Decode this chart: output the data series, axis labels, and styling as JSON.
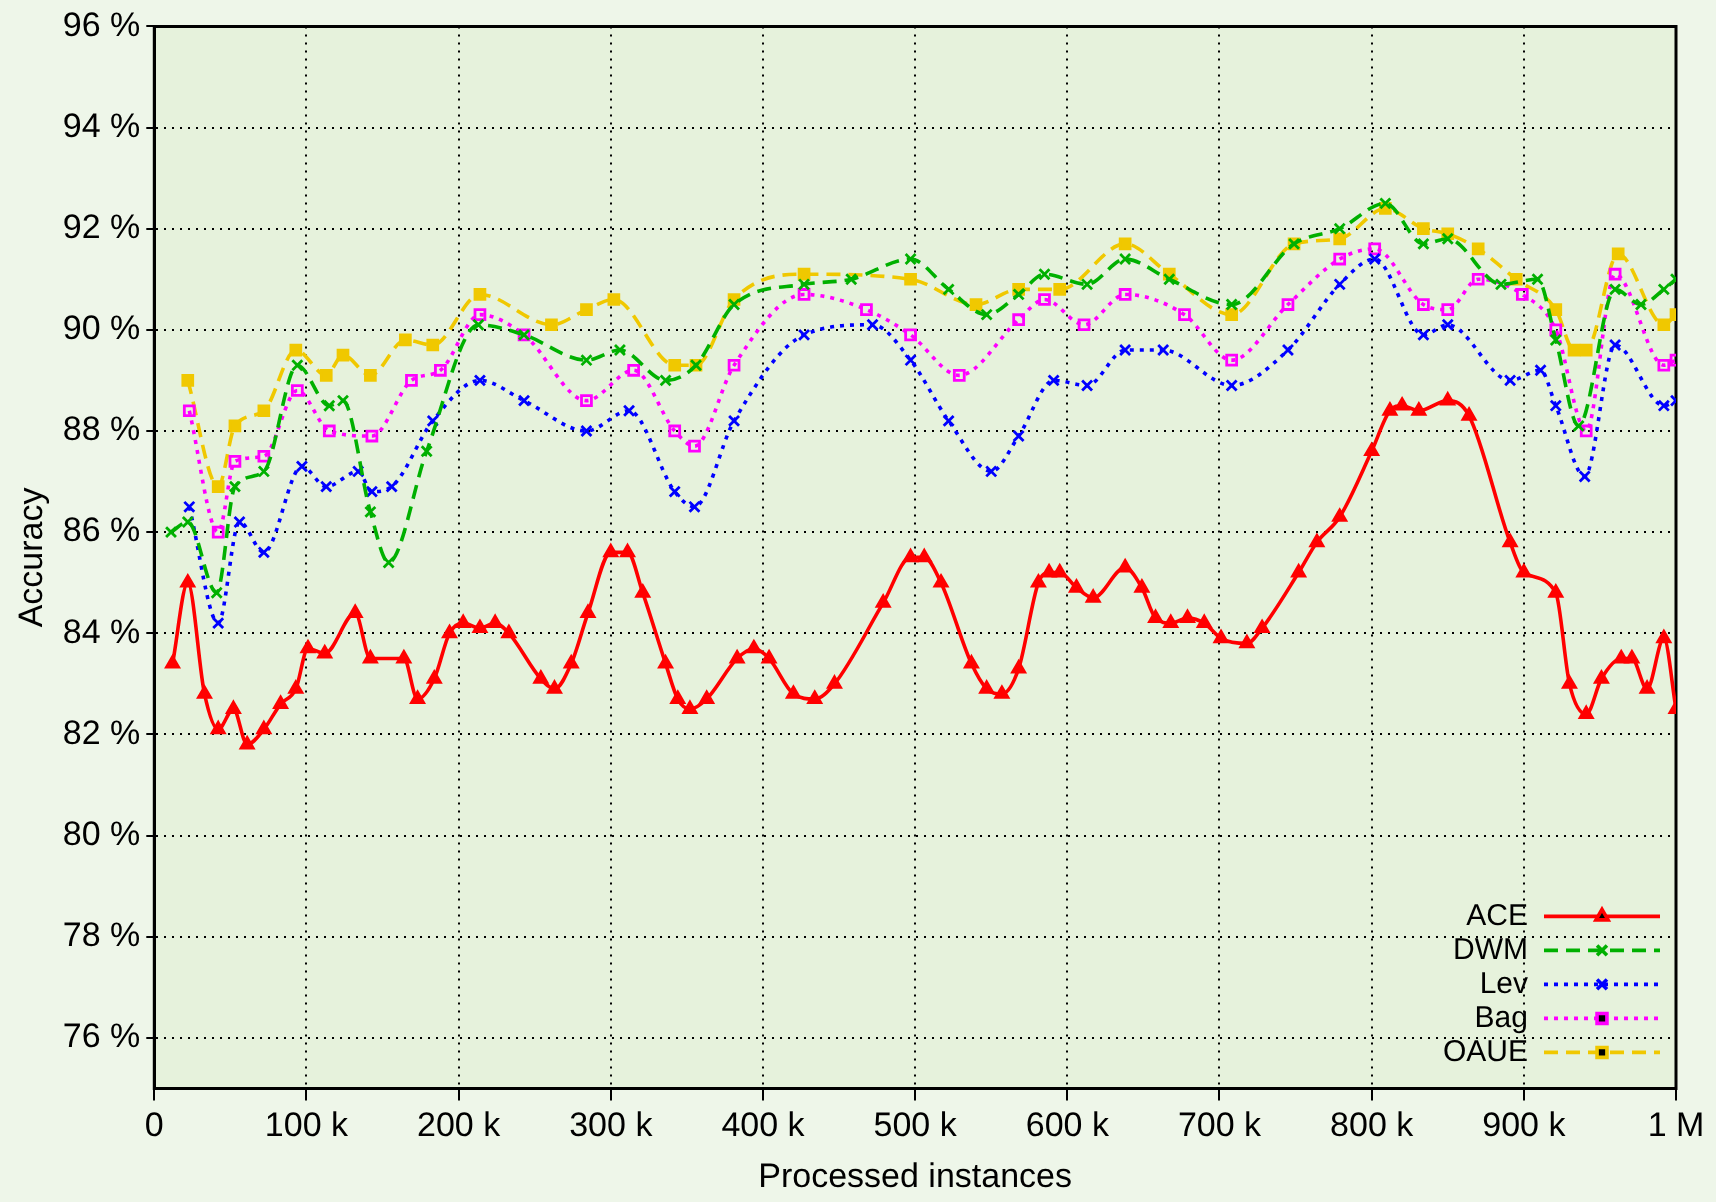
{
  "chart_data": {
    "type": "line",
    "xlabel": "Processed instances",
    "ylabel": "Accuracy",
    "xlim": [
      0,
      1000000
    ],
    "ylim": [
      75,
      96
    ],
    "xticks": [
      {
        "value": 0,
        "label": "0"
      },
      {
        "value": 100000,
        "label": "100 k"
      },
      {
        "value": 200000,
        "label": "200 k"
      },
      {
        "value": 300000,
        "label": "300 k"
      },
      {
        "value": 400000,
        "label": "400 k"
      },
      {
        "value": 500000,
        "label": "500 k"
      },
      {
        "value": 600000,
        "label": "600 k"
      },
      {
        "value": 700000,
        "label": "700 k"
      },
      {
        "value": 800000,
        "label": "800 k"
      },
      {
        "value": 900000,
        "label": "900 k"
      },
      {
        "value": 1000000,
        "label": "1 M"
      }
    ],
    "yticks": [
      {
        "value": 76,
        "label": "76 %"
      },
      {
        "value": 78,
        "label": "78 %"
      },
      {
        "value": 80,
        "label": "80 %"
      },
      {
        "value": 82,
        "label": "82 %"
      },
      {
        "value": 84,
        "label": "84 %"
      },
      {
        "value": 86,
        "label": "86 %"
      },
      {
        "value": 88,
        "label": "88 %"
      },
      {
        "value": 90,
        "label": "90 %"
      },
      {
        "value": 92,
        "label": "92 %"
      },
      {
        "value": 94,
        "label": "94 %"
      },
      {
        "value": 96,
        "label": "96 %"
      }
    ],
    "grid": true,
    "legend": "bottom right",
    "series": [
      {
        "name": "ACE",
        "color": "#ff0000",
        "marker": "triangle",
        "line_style": "solid",
        "x": [
          12000,
          22000,
          33000,
          42000,
          52000,
          61000,
          72000,
          83000,
          93000,
          101000,
          112000,
          132000,
          142000,
          164000,
          173000,
          184000,
          194000,
          203000,
          214000,
          224000,
          233000,
          254000,
          263000,
          274000,
          285000,
          300000,
          311000,
          321000,
          336000,
          344000,
          352000,
          363000,
          383000,
          394000,
          404000,
          420000,
          434000,
          447000,
          479000,
          497000,
          506000,
          517000,
          537000,
          547000,
          557000,
          568000,
          581000,
          588000,
          595000,
          606000,
          617000,
          638000,
          649000,
          658000,
          668000,
          679000,
          690000,
          701000,
          718000,
          728000,
          752000,
          764000,
          779000,
          800000,
          812000,
          820000,
          831000,
          850000,
          864000,
          891000,
          900000,
          921000,
          930000,
          941000,
          951000,
          964000,
          971000,
          981000,
          992000,
          1000000
        ],
        "values": [
          83.4,
          85.0,
          82.8,
          82.1,
          82.5,
          81.8,
          82.1,
          82.6,
          82.9,
          83.7,
          83.6,
          84.4,
          83.5,
          83.5,
          82.7,
          83.1,
          84.0,
          84.2,
          84.1,
          84.2,
          84.0,
          83.1,
          82.9,
          83.4,
          84.4,
          85.6,
          85.6,
          84.8,
          83.4,
          82.7,
          82.5,
          82.7,
          83.5,
          83.7,
          83.5,
          82.8,
          82.7,
          83.0,
          84.6,
          85.5,
          85.5,
          85.0,
          83.4,
          82.9,
          82.8,
          83.3,
          85.0,
          85.2,
          85.2,
          84.9,
          84.7,
          85.3,
          84.9,
          84.3,
          84.2,
          84.3,
          84.2,
          83.9,
          83.8,
          84.1,
          85.2,
          85.8,
          86.3,
          87.6,
          88.4,
          88.5,
          88.4,
          88.6,
          88.3,
          85.8,
          85.2,
          84.8,
          83.0,
          82.4,
          83.1,
          83.5,
          83.5,
          82.9,
          83.9,
          82.5
        ]
      },
      {
        "name": "DWM",
        "color": "#00b000",
        "marker": "cross",
        "line_style": "dashed",
        "x": [
          11000,
          22000,
          41000,
          53000,
          72000,
          94000,
          115000,
          124000,
          142000,
          154000,
          179000,
          213000,
          243000,
          284000,
          306000,
          336000,
          356000,
          381000,
          427000,
          458000,
          497000,
          522000,
          547000,
          568000,
          585000,
          613000,
          638000,
          667000,
          708000,
          749000,
          779000,
          809000,
          834000,
          850000,
          885000,
          909000,
          921000,
          936000,
          960000,
          977000,
          992000,
          1000000
        ],
        "values": [
          86.0,
          86.2,
          84.8,
          86.9,
          87.2,
          89.3,
          88.5,
          88.6,
          86.4,
          85.4,
          87.6,
          90.1,
          89.9,
          89.4,
          89.6,
          89.0,
          89.3,
          90.5,
          90.9,
          91.0,
          91.4,
          90.8,
          90.3,
          90.7,
          91.1,
          90.9,
          91.4,
          91.0,
          90.5,
          91.7,
          92.0,
          92.5,
          91.7,
          91.8,
          90.9,
          91.0,
          89.8,
          88.1,
          90.8,
          90.5,
          90.8,
          91.0
        ]
      },
      {
        "name": "Lev",
        "color": "#0000ff",
        "marker": "cross",
        "line_style": "dotted",
        "x": [
          23000,
          42000,
          56000,
          72000,
          97000,
          113000,
          134000,
          143000,
          156000,
          183000,
          214000,
          243000,
          284000,
          312000,
          342000,
          355000,
          381000,
          427000,
          472000,
          497000,
          522000,
          550000,
          568000,
          591000,
          613000,
          638000,
          663000,
          708000,
          745000,
          779000,
          802000,
          834000,
          850000,
          891000,
          911000,
          921000,
          940000,
          960000,
          992000,
          1000000
        ],
        "values": [
          86.5,
          84.2,
          86.2,
          85.6,
          87.3,
          86.9,
          87.2,
          86.8,
          86.9,
          88.2,
          89.0,
          88.6,
          88.0,
          88.4,
          86.8,
          86.5,
          88.2,
          89.9,
          90.1,
          89.4,
          88.2,
          87.2,
          87.9,
          89.0,
          88.9,
          89.6,
          89.6,
          88.9,
          89.6,
          90.9,
          91.4,
          89.9,
          90.1,
          89.0,
          89.2,
          88.5,
          87.1,
          89.7,
          88.5,
          88.6
        ]
      },
      {
        "name": "Bag",
        "color": "#ff00ff",
        "marker": "square",
        "line_style": "dotted",
        "x": [
          23000,
          42000,
          53000,
          72000,
          94000,
          115000,
          143000,
          169000,
          188000,
          214000,
          243000,
          284000,
          315000,
          342000,
          355000,
          381000,
          427000,
          468000,
          497000,
          529000,
          568000,
          585000,
          611000,
          638000,
          677000,
          708000,
          745000,
          779000,
          802000,
          834000,
          850000,
          870000,
          899000,
          921000,
          941000,
          960000,
          992000,
          1000000
        ],
        "values": [
          88.4,
          86.0,
          87.4,
          87.5,
          88.8,
          88.0,
          87.9,
          89.0,
          89.2,
          90.3,
          89.9,
          88.6,
          89.2,
          88.0,
          87.7,
          89.3,
          90.7,
          90.4,
          89.9,
          89.1,
          90.2,
          90.6,
          90.1,
          90.7,
          90.3,
          89.4,
          90.5,
          91.4,
          91.6,
          90.5,
          90.4,
          91.0,
          90.7,
          90.0,
          88.0,
          91.1,
          89.3,
          89.4
        ]
      },
      {
        "name": "OAUE",
        "color": "#f0c800",
        "marker": "square",
        "line_style": "dashed",
        "x": [
          22000,
          42000,
          53000,
          72000,
          93000,
          113000,
          124000,
          142000,
          165000,
          183000,
          214000,
          261000,
          284000,
          302000,
          342000,
          356000,
          381000,
          427000,
          497000,
          540000,
          568000,
          595000,
          638000,
          667000,
          708000,
          749000,
          779000,
          809000,
          834000,
          850000,
          870000,
          895000,
          921000,
          933000,
          941000,
          962000,
          992000,
          1000000
        ],
        "values": [
          89.0,
          86.9,
          88.1,
          88.4,
          89.6,
          89.1,
          89.5,
          89.1,
          89.8,
          89.7,
          90.7,
          90.1,
          90.4,
          90.6,
          89.3,
          89.3,
          90.6,
          91.1,
          91.0,
          90.5,
          90.8,
          90.8,
          91.7,
          91.1,
          90.3,
          91.7,
          91.8,
          92.4,
          92.0,
          91.9,
          91.6,
          91.0,
          90.4,
          89.6,
          89.6,
          91.5,
          90.1,
          90.3
        ]
      }
    ]
  }
}
